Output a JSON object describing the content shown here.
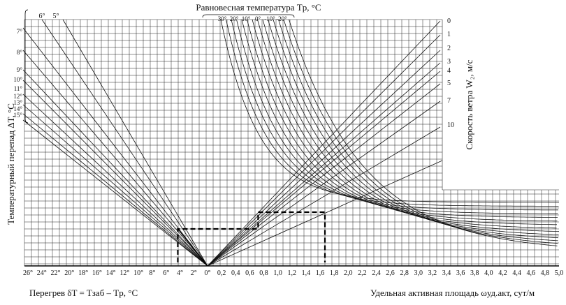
{
  "chart_data": {
    "type": "line",
    "title": "Равновесная температура Tр, °C",
    "left_axis_label": "Температурный перепад ΔT, °C",
    "right_axis_label": "Скорость ветра W₂, м/с",
    "xlabel_left": "Перегрев  δT =  Tзаб – Tр,  °C",
    "xlabel_right": "Удельная активная площадь ωуд.акт, сут/м",
    "x_ticks_left": [
      "26°",
      "24°",
      "22°",
      "20°",
      "18°",
      "16°",
      "14°",
      "12°",
      "10°",
      "8°",
      "6°",
      "4°",
      "2°",
      "0°"
    ],
    "x_ticks_right": [
      "0,2",
      "0,4",
      "0,6",
      "0,8",
      "1,0",
      "1,2",
      "1,4",
      "1,6",
      "1,8",
      "2,0",
      "2,2",
      "2,4",
      "2,6",
      "2,8",
      "3,0",
      "3,2",
      "3,4",
      "3,6",
      "3,8",
      "4,0",
      "4,2",
      "4,4",
      "4,6",
      "4,8",
      "5,0"
    ],
    "top_ticks": [
      "30°",
      "20°",
      "10°",
      "0°",
      "-10°",
      "-20°"
    ],
    "top_left_ticks": [
      "6°",
      "5°"
    ],
    "left_delta_ticks": [
      "7°",
      "8°",
      "9°",
      "10°",
      "11°",
      "12°",
      "13°",
      "14°",
      "15°"
    ],
    "wind_speeds": [
      "0",
      "1",
      "2",
      "3",
      "4",
      "5",
      "7",
      "10"
    ],
    "example_path": {
      "superheat": 4.3,
      "area": 1.67,
      "breakpoint_area": 0.72
    }
  }
}
